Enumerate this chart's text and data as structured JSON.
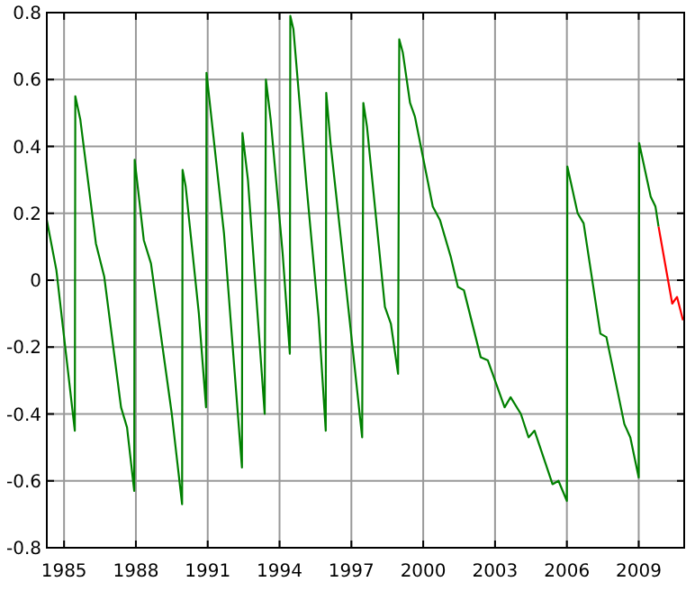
{
  "chart_data": {
    "type": "line",
    "xlim": [
      1984.28,
      2010.9
    ],
    "ylim": [
      -0.8,
      0.8
    ],
    "xticks": [
      1985,
      1988,
      1991,
      1994,
      1997,
      2000,
      2003,
      2006,
      2009
    ],
    "yticks": [
      -0.8,
      -0.6,
      -0.4,
      -0.2,
      0,
      0.2,
      0.4,
      0.6,
      0.8
    ],
    "grid": true,
    "marker": "none",
    "line_style": "solid",
    "series": [
      {
        "color": "#008000",
        "x": [
          1984.28,
          1984.68,
          1985.45,
          1985.47,
          1985.68,
          1986.33,
          1986.68,
          1987.38,
          1987.63,
          1987.93,
          1987.95,
          1988.33,
          1988.63,
          1989.5,
          1989.93,
          1989.95,
          1990.08,
          1990.63,
          1990.93,
          1990.95,
          1991.68,
          1992.43,
          1992.45,
          1992.68,
          1993.38,
          1993.43,
          1993.63,
          1994.13,
          1994.43,
          1994.45,
          1994.58,
          1995.13,
          1995.63,
          1995.93,
          1995.95,
          1996.13,
          1996.63,
          1997.45,
          1997.5,
          1997.65,
          1998.4,
          1998.65,
          1998.95,
          1999.0,
          1999.15,
          1999.45,
          1999.65,
          2000.4,
          2000.7,
          2001.15,
          2001.45,
          2001.7,
          2002.4,
          2002.7,
          2003.4,
          2003.65,
          2004.08,
          2004.4,
          2004.65,
          2005.4,
          2005.65,
          2006.0,
          2006.02,
          2006.45,
          2006.7,
          2007.4,
          2007.65,
          2008.4,
          2008.65,
          2009.0,
          2009.02,
          2009.5,
          2009.7,
          2009.83
        ],
        "values": [
          0.18,
          0.03,
          -0.45,
          0.55,
          0.48,
          0.11,
          0.01,
          -0.38,
          -0.44,
          -0.63,
          0.36,
          0.12,
          0.05,
          -0.4,
          -0.67,
          0.33,
          0.28,
          -0.1,
          -0.38,
          0.62,
          0.14,
          -0.56,
          0.44,
          0.3,
          -0.4,
          0.6,
          0.48,
          0.08,
          -0.22,
          0.79,
          0.75,
          0.28,
          -0.11,
          -0.45,
          0.56,
          0.41,
          0.08,
          -0.47,
          0.53,
          0.46,
          -0.08,
          -0.13,
          -0.28,
          0.72,
          0.68,
          0.53,
          0.49,
          0.22,
          0.18,
          0.07,
          -0.02,
          -0.03,
          -0.23,
          -0.24,
          -0.38,
          -0.35,
          -0.4,
          -0.47,
          -0.45,
          -0.61,
          -0.6,
          -0.66,
          0.34,
          0.2,
          0.17,
          -0.16,
          -0.17,
          -0.43,
          -0.47,
          -0.59,
          0.41,
          0.25,
          0.22,
          0.16
        ]
      },
      {
        "color": "#ff0000",
        "x": [
          2009.83,
          2010.2,
          2010.4,
          2010.6,
          2010.85
        ],
        "values": [
          0.16,
          0.01,
          -0.07,
          -0.05,
          -0.12
        ]
      }
    ]
  }
}
